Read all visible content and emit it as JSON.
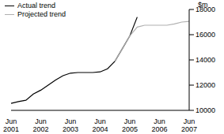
{
  "chart_data": {
    "type": "line",
    "y_label": "$m",
    "categories": [
      "Jun 2001",
      null,
      null,
      null,
      "Jun 2002",
      null,
      null,
      null,
      "Jun 2003",
      null,
      null,
      null,
      "Jun 2004",
      null,
      null,
      null,
      "Jun 2005",
      null,
      null,
      null,
      "Jun 2006",
      null,
      null,
      null,
      "Jun 2007"
    ],
    "series": [
      {
        "name": "Actual trend",
        "color": "#000000",
        "values": [
          10550,
          10700,
          10800,
          11300,
          11600,
          12000,
          12400,
          12750,
          12950,
          13000,
          13000,
          13000,
          13050,
          13300,
          13900,
          14900,
          15900,
          17400,
          null,
          null,
          null,
          null,
          null,
          null,
          null
        ]
      },
      {
        "name": "Projected trend",
        "color": "#b0b0b0",
        "values": [
          null,
          null,
          null,
          null,
          null,
          null,
          null,
          null,
          null,
          null,
          null,
          null,
          null,
          null,
          13900,
          14900,
          15900,
          16600,
          16750,
          16750,
          16750,
          16750,
          16850,
          17000,
          17050
        ]
      }
    ],
    "ylim": [
      10000,
      18000
    ],
    "yticks": [
      10000,
      12000,
      14000,
      16000,
      18000
    ],
    "legend": "top-left",
    "grid": false
  }
}
